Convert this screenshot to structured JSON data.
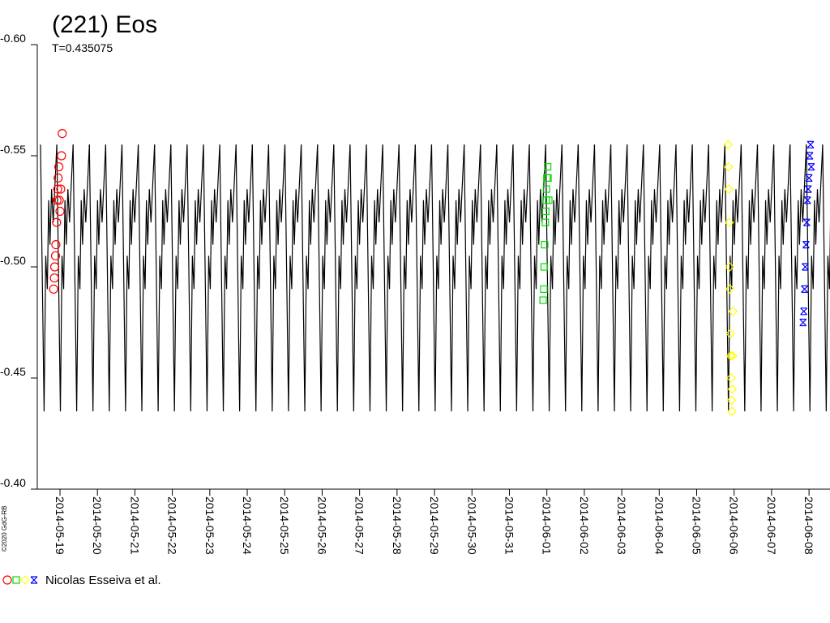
{
  "chart_data": {
    "type": "scatter",
    "title": "(221) Eos",
    "period": {
      "value": 0.435075,
      "label": "T=0.435075"
    },
    "credit": "©2020 GdG-RB",
    "legend_label": "Nicolas Esseiva et al.",
    "y_inverted": true,
    "ylim": [
      -0.6,
      -0.4
    ],
    "yticks": [
      {
        "value": -0.6,
        "label": "-0.60"
      },
      {
        "value": -0.55,
        "label": "-0.55"
      },
      {
        "value": -0.5,
        "label": "-0.50"
      },
      {
        "value": -0.45,
        "label": "-0.45"
      },
      {
        "value": -0.4,
        "label": "-0.40"
      }
    ],
    "xlim": [
      -0.606,
      20.56
    ],
    "xticks": [
      {
        "value": 0,
        "label": "2014-05-19"
      },
      {
        "value": 1,
        "label": "2014-05-20"
      },
      {
        "value": 2,
        "label": "2014-05-21"
      },
      {
        "value": 3,
        "label": "2014-05-22"
      },
      {
        "value": 4,
        "label": "2014-05-23"
      },
      {
        "value": 5,
        "label": "2014-05-24"
      },
      {
        "value": 6,
        "label": "2014-05-25"
      },
      {
        "value": 7,
        "label": "2014-05-26"
      },
      {
        "value": 8,
        "label": "2014-05-27"
      },
      {
        "value": 9,
        "label": "2014-05-28"
      },
      {
        "value": 10,
        "label": "2014-05-29"
      },
      {
        "value": 11,
        "label": "2014-05-30"
      },
      {
        "value": 12,
        "label": "2014-05-31"
      },
      {
        "value": 13,
        "label": "2014-06-01"
      },
      {
        "value": 14,
        "label": "2014-06-02"
      },
      {
        "value": 15,
        "label": "2014-06-03"
      },
      {
        "value": 16,
        "label": "2014-06-04"
      },
      {
        "value": 17,
        "label": "2014-06-05"
      },
      {
        "value": 18,
        "label": "2014-06-06"
      },
      {
        "value": 19,
        "label": "2014-06-07"
      },
      {
        "value": 20,
        "label": "2014-06-08"
      }
    ],
    "model": {
      "color": "#000000",
      "epoch": -0.52,
      "phase": [
        0,
        0.22,
        0.32,
        0.42,
        0.5,
        0.58,
        0.68,
        0.78,
        1.0
      ],
      "values": [
        -0.555,
        -0.435,
        -0.505,
        -0.49,
        -0.53,
        -0.51,
        -0.535,
        -0.52,
        -0.555
      ]
    },
    "series": [
      {
        "color": "#ff0000",
        "marker": "circle",
        "x": [
          -0.17,
          -0.15,
          -0.14,
          -0.12,
          -0.11,
          -0.09,
          -0.08,
          -0.06,
          -0.05,
          -0.03,
          -0.02,
          0.0,
          0.02,
          0.04,
          0.06
        ],
        "values": [
          -0.49,
          -0.495,
          -0.5,
          -0.505,
          -0.51,
          -0.52,
          -0.53,
          -0.535,
          -0.54,
          -0.545,
          -0.53,
          -0.525,
          -0.535,
          -0.55,
          -0.56
        ]
      },
      {
        "color": "#00dd00",
        "marker": "square",
        "x": [
          12.9,
          12.92,
          12.93,
          12.94,
          12.96,
          12.97,
          12.98,
          12.99,
          13.0,
          13.02,
          13.03,
          13.05
        ],
        "values": [
          -0.485,
          -0.49,
          -0.5,
          -0.51,
          -0.52,
          -0.525,
          -0.53,
          -0.535,
          -0.54,
          -0.545,
          -0.54,
          -0.53
        ]
      },
      {
        "color": "#ffff00",
        "marker": "diamond",
        "x": [
          17.84,
          17.85,
          17.86,
          17.87,
          17.88,
          17.89,
          17.9,
          17.91,
          17.92,
          17.93,
          17.94,
          17.95,
          17.96,
          17.97
        ],
        "values": [
          -0.555,
          -0.545,
          -0.535,
          -0.52,
          -0.5,
          -0.49,
          -0.47,
          -0.46,
          -0.45,
          -0.44,
          -0.435,
          -0.445,
          -0.46,
          -0.48
        ]
      },
      {
        "color": "#0000ff",
        "marker": "cross",
        "x": [
          19.84,
          19.86,
          19.88,
          19.9,
          19.92,
          19.94,
          19.96,
          19.98,
          20.0,
          20.02,
          20.04,
          20.06
        ],
        "values": [
          -0.475,
          -0.48,
          -0.49,
          -0.5,
          -0.51,
          -0.52,
          -0.53,
          -0.535,
          -0.54,
          -0.55,
          -0.555,
          -0.545
        ]
      }
    ]
  }
}
